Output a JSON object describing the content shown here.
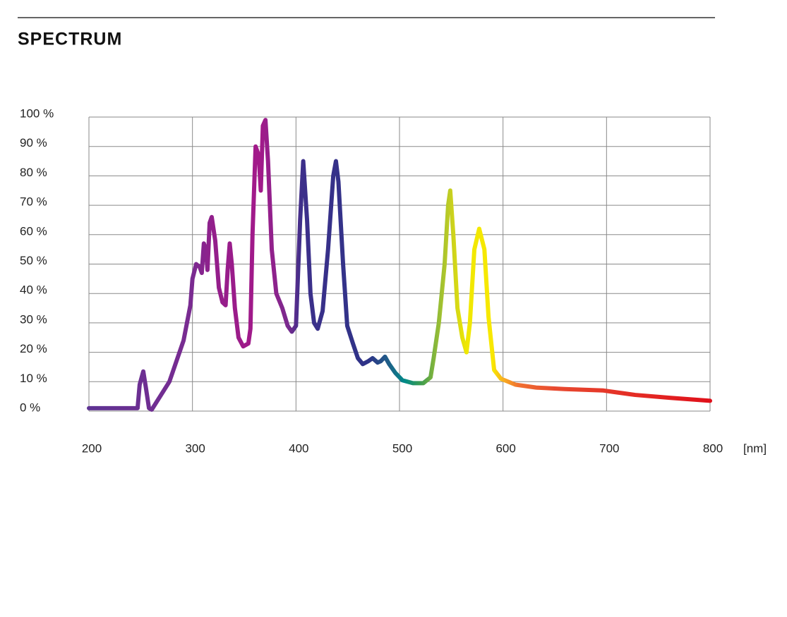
{
  "chart_data": {
    "type": "line",
    "title": "SPECTRUM",
    "x_label": "[nm]",
    "x": [
      200,
      247,
      249,
      252.5,
      255,
      258,
      260.7,
      277.7,
      291.4,
      298,
      300,
      303.6,
      307,
      309,
      311,
      313,
      314.5,
      316.6,
      318.6,
      322,
      325.5,
      329,
      332,
      334,
      336,
      338,
      341,
      344.5,
      349,
      354,
      356,
      358,
      361,
      364,
      366,
      368,
      370.5,
      373,
      376.6,
      381,
      386.8,
      392,
      396,
      400,
      404,
      407,
      410.7,
      414,
      417.5,
      421,
      425.7,
      431,
      436,
      438.6,
      441,
      445.5,
      449.5,
      455,
      459.8,
      464.5,
      470,
      474,
      478.9,
      482,
      486,
      490,
      496,
      502.7,
      513,
      523,
      530,
      533,
      538,
      543.6,
      547,
      549,
      552,
      556,
      560.7,
      564.7,
      568,
      572.3,
      577,
      582,
      586,
      589,
      591.4,
      598,
      612,
      632,
      659.5,
      697,
      707,
      727.7,
      762,
      800
    ],
    "values": [
      1,
      1,
      9,
      13.5,
      8,
      1,
      0.5,
      10,
      24,
      36,
      45,
      50,
      49,
      47,
      57,
      55,
      48,
      64,
      66,
      58,
      42,
      37,
      36,
      48,
      57,
      50,
      35,
      25,
      22,
      23,
      28,
      60,
      90,
      87,
      75,
      97,
      99,
      85,
      55,
      40,
      35,
      29,
      27,
      29,
      65,
      85,
      65,
      40,
      30,
      28,
      34,
      55,
      80,
      85,
      78,
      50,
      29,
      23,
      18,
      16,
      17,
      18,
      16.5,
      17,
      18.5,
      16,
      13,
      10.5,
      9.5,
      9.5,
      11.5,
      18,
      30,
      50,
      70,
      75,
      60,
      35,
      25,
      20,
      30,
      55,
      62,
      55,
      32,
      22,
      14,
      11,
      9,
      8,
      7.5,
      7,
      6.5,
      5.5,
      4.5,
      3.5
    ],
    "gradient_stops": [
      {
        "x": 200,
        "color": "#5e3393"
      },
      {
        "x": 300,
        "color": "#7a2b91"
      },
      {
        "x": 320,
        "color": "#931f8b"
      },
      {
        "x": 365,
        "color": "#a3198a"
      },
      {
        "x": 392,
        "color": "#7a2a8e"
      },
      {
        "x": 405,
        "color": "#3d2f8a"
      },
      {
        "x": 470,
        "color": "#2e3388"
      },
      {
        "x": 490,
        "color": "#1e6088"
      },
      {
        "x": 505,
        "color": "#008a88"
      },
      {
        "x": 520,
        "color": "#3a9a50"
      },
      {
        "x": 535,
        "color": "#8ab83a"
      },
      {
        "x": 550,
        "color": "#c8d020"
      },
      {
        "x": 565,
        "color": "#f0e800"
      },
      {
        "x": 590,
        "color": "#f8e800"
      },
      {
        "x": 600,
        "color": "#f8b020"
      },
      {
        "x": 615,
        "color": "#f07030"
      },
      {
        "x": 650,
        "color": "#e84a30"
      },
      {
        "x": 800,
        "color": "#e0101a"
      }
    ],
    "line_width": 6,
    "xlim": [
      200,
      800
    ],
    "xticks": [
      200,
      300,
      400,
      500,
      600,
      700,
      800
    ],
    "ylim": [
      0,
      100
    ],
    "yticks": [
      {
        "value": 0,
        "label": "0 %"
      },
      {
        "value": 10,
        "label": "10 %"
      },
      {
        "value": 20,
        "label": "20 %"
      },
      {
        "value": 30,
        "label": "30 %"
      },
      {
        "value": 40,
        "label": "40 %"
      },
      {
        "value": 50,
        "label": "50 %"
      },
      {
        "value": 60,
        "label": "60 %"
      },
      {
        "value": 70,
        "label": "70 %"
      },
      {
        "value": 80,
        "label": "80 %"
      },
      {
        "value": 90,
        "label": "90 %"
      },
      {
        "value": 100,
        "label": "100 %"
      }
    ],
    "grid": true
  }
}
